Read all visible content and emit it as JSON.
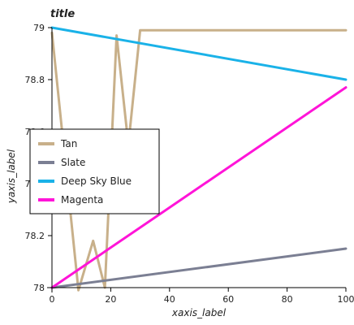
{
  "chart_data": {
    "type": "line",
    "title": "title",
    "xlabel": "xaxis_label",
    "ylabel": "yaxis_label",
    "xlim": [
      0,
      100
    ],
    "ylim": [
      78.0,
      79.0
    ],
    "x_ticks": [
      0,
      20,
      40,
      60,
      80,
      100
    ],
    "y_ticks": [
      78.0,
      78.2,
      78.4,
      78.6,
      78.8,
      79.0
    ],
    "x_tick_labels": [
      "0",
      "20",
      "40",
      "60",
      "80",
      "100"
    ],
    "y_tick_labels": [
      "78",
      "78.2",
      "78.4",
      "78.6",
      "78.8",
      "79"
    ],
    "legend_placement": "center-left",
    "series": [
      {
        "name": "Tan",
        "color": "#c8b08a",
        "x": [
          0,
          5,
          9,
          14,
          18,
          22,
          26,
          30,
          34,
          100
        ],
        "y": [
          78.98,
          78.43,
          77.99,
          78.18,
          78.0,
          78.97,
          78.55,
          78.99,
          78.99,
          78.99
        ]
      },
      {
        "name": "Slate",
        "color": "#7b7f93",
        "x": [
          0,
          100
        ],
        "y": [
          78.0,
          78.15
        ]
      },
      {
        "name": "Deep Sky Blue",
        "color": "#1ab2e8",
        "x": [
          0,
          100
        ],
        "y": [
          79.0,
          78.8
        ]
      },
      {
        "name": "Magenta",
        "color": "#ff14d8",
        "x": [
          0,
          100
        ],
        "y": [
          78.0,
          78.77
        ]
      }
    ]
  }
}
